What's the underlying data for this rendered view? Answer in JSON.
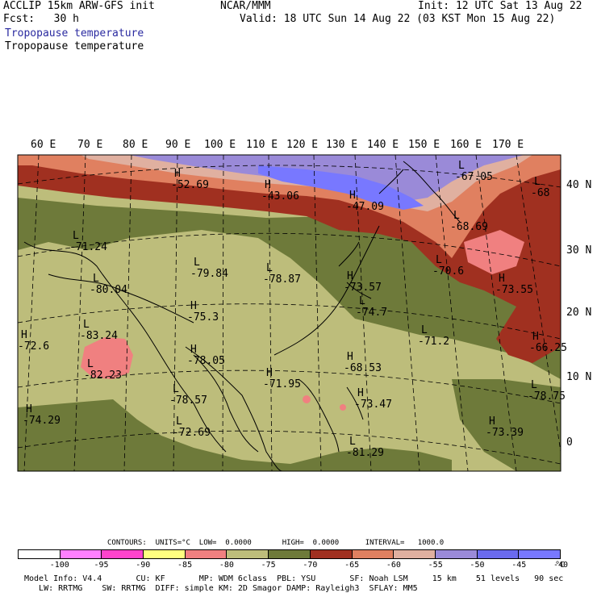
{
  "header": {
    "model": "ACCLIP 15km ARW-GFS init",
    "forecast": "Fcst:   30 h",
    "center": "NCAR/MMM",
    "init": "Init: 12 UTC Sat 13 Aug 22",
    "valid": "Valid: 18 UTC Sun 14 Aug 22 (03 KST Mon 15 Aug 22)",
    "field_blue": "Tropopause temperature",
    "field_black": "Tropopause temperature"
  },
  "axes": {
    "longitudes": [
      "60 E",
      "70 E",
      "80 E",
      "90 E",
      "100 E",
      "110 E",
      "120 E",
      "130 E",
      "140 E",
      "150 E",
      "160 E",
      "170 E"
    ],
    "latitudes": [
      "40 N",
      "30 N",
      "20 N",
      "10 N",
      "0"
    ]
  },
  "extrema": [
    {
      "type": "H",
      "value": "-52.69"
    },
    {
      "type": "H",
      "value": "-43.06"
    },
    {
      "type": "H",
      "value": "-47.09"
    },
    {
      "type": "L",
      "value": "-67.05"
    },
    {
      "type": "L",
      "value": "-68"
    },
    {
      "type": "L",
      "value": "-68.69"
    },
    {
      "type": "L",
      "value": "-71.24"
    },
    {
      "type": "L",
      "value": "-79.84"
    },
    {
      "type": "L",
      "value": "-78.87"
    },
    {
      "type": "L",
      "value": "-80.04"
    },
    {
      "type": "H",
      "value": "-73.57"
    },
    {
      "type": "L",
      "value": "-70.6"
    },
    {
      "type": "H",
      "value": "-73.55"
    },
    {
      "type": "H",
      "value": "-75.3"
    },
    {
      "type": "L",
      "value": "-74.7"
    },
    {
      "type": "L",
      "value": "-83.24"
    },
    {
      "type": "L",
      "value": "-82.23"
    },
    {
      "type": "H",
      "value": "-72.6"
    },
    {
      "type": "H",
      "value": "-78.05"
    },
    {
      "type": "L",
      "value": "-71.2"
    },
    {
      "type": "H",
      "value": "-68.53"
    },
    {
      "type": "H",
      "value": "-66.25"
    },
    {
      "type": "H",
      "value": "-71.95"
    },
    {
      "type": "L",
      "value": "-78.57"
    },
    {
      "type": "H",
      "value": "-73.47"
    },
    {
      "type": "L",
      "value": "-78.75"
    },
    {
      "type": "H",
      "value": "-74.29"
    },
    {
      "type": "L",
      "value": "-72.69"
    },
    {
      "type": "H",
      "value": "-73.39"
    },
    {
      "type": "L",
      "value": "-81.29"
    }
  ],
  "legend": {
    "contours_text": "CONTOURS:  UNITS=°C  LOW=  0.0000       HIGH=  0.0000      INTERVAL=   1000.0",
    "ticks": [
      "-100",
      "-95",
      "-90",
      "-85",
      "-80",
      "-75",
      "-70",
      "-65",
      "-60",
      "-55",
      "-50",
      "-45",
      "-40"
    ],
    "unit": "°C",
    "colors": [
      "#ffffff",
      "#ff80ff",
      "#ff44cc",
      "#ffff80",
      "#f08080",
      "#bdbd7b",
      "#6e7a3a",
      "#a03020",
      "#e08060",
      "#e0b0a0",
      "#9a8ad8",
      "#6a6aee",
      "#7878ff"
    ]
  },
  "footer": {
    "line1": "Model Info: V4.4       CU: KF       MP: WDM 6class  PBL: YSU       SF: Noah LSM     15 km    51 levels   90 sec",
    "line2": "   LW: RRTMG    SW: RRTMG  DIFF: simple KM: 2D Smagor DAMP: Rayleigh3  SFLAY: MM5"
  },
  "colors": {
    "tropics": "#bdbd7b",
    "midlevel": "#6e7a3a",
    "warm_red": "#a03020",
    "orange": "#e08060",
    "pink_light": "#e0b0a0",
    "lavender": "#9a8ad8",
    "blue": "#6a6aee",
    "cold_pink": "#f08080"
  }
}
